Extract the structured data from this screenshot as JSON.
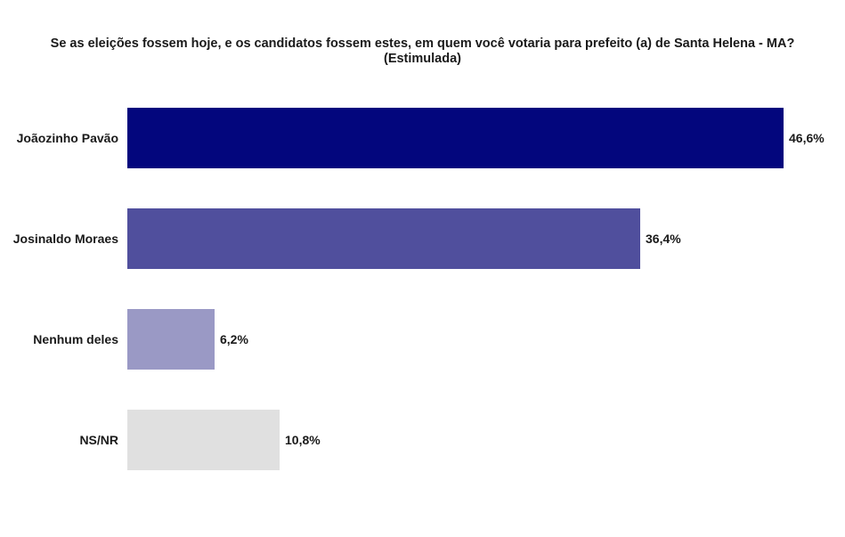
{
  "title": {
    "line1": "Se as eleições fossem hoje, e os candidatos fossem estes, em quem você votaria para prefeito (a) de Santa Helena - MA?",
    "line2": "(Estimulada)"
  },
  "chart_data": {
    "type": "bar",
    "orientation": "horizontal",
    "title": "Se as eleições fossem hoje, e os candidatos fossem estes, em quem você votaria para prefeito (a) de Santa Helena - MA? (Estimulada)",
    "categories": [
      "Joãozinho Pavão",
      "Josinaldo Moraes",
      "Nenhum deles",
      "NS/NR"
    ],
    "values": [
      46.6,
      36.4,
      6.2,
      10.8
    ],
    "value_labels": [
      "46,6%",
      "36,4%",
      "6,2%",
      "10,8%"
    ],
    "colors": [
      "#03067d",
      "#504f9d",
      "#9a99c5",
      "#e0e0e0"
    ],
    "xlim": [
      0,
      51
    ],
    "grid": false,
    "legend": false,
    "background": "#ffffff",
    "text_color": "#1a1a1a",
    "value_label_position": "right-of-bar",
    "category_label_position": "left-of-bar"
  }
}
